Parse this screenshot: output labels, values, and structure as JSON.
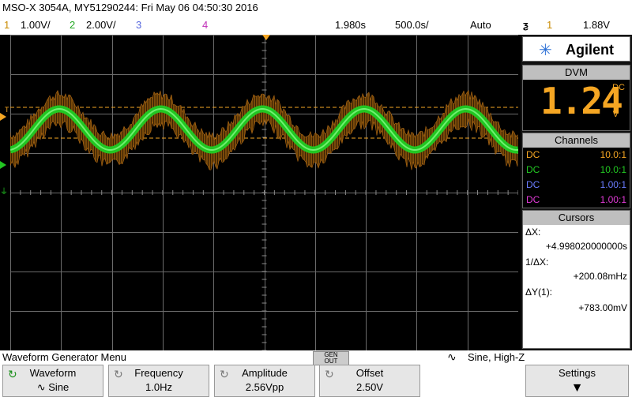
{
  "title": "MSO-X 3054A, MY51290244: Fri May 06 04:50:30 2016",
  "topbar": {
    "ch1_num": "1",
    "ch1_scale": "1.00V/",
    "ch2_num": "2",
    "ch2_scale": "2.00V/",
    "ch3_num": "3",
    "ch4_num": "4",
    "time_ref": "1.980s",
    "time_scale": "500.0s/",
    "trigger_mode": "Auto",
    "trig_icon": "trigger-edge-icon",
    "trig_channel": "1",
    "trig_level": "1.88V"
  },
  "panel": {
    "brand": "Agilent",
    "dvm_header": "DVM",
    "dvm_value": "1.24",
    "dvm_dc": "DC",
    "dvm_unit": "V",
    "channels_header": "Channels",
    "channels": [
      {
        "coupling": "DC",
        "probe": "10.0:1",
        "color": "#f5a623"
      },
      {
        "coupling": "DC",
        "probe": "10.0:1",
        "color": "#22c622"
      },
      {
        "coupling": "DC",
        "probe": "1.00:1",
        "color": "#6a7cff"
      },
      {
        "coupling": "DC",
        "probe": "1.00:1",
        "color": "#e03ad6"
      }
    ],
    "cursors_header": "Cursors",
    "dx_label": "ΔX:",
    "dx_value": "+4.998020000000s",
    "inv_dx_label": "1/ΔX:",
    "inv_dx_value": "+200.08mHz",
    "dy_label": "ΔY(1):",
    "dy_value": "+783.00mV"
  },
  "bottom": {
    "menu_title": "Waveform Generator Menu",
    "gen_label_1": "GEN",
    "gen_label_2": "OUT",
    "status": "Sine, High-Z",
    "softkeys": [
      {
        "title": "Waveform",
        "value": "Sine"
      },
      {
        "title": "Frequency",
        "value": "1.0Hz"
      },
      {
        "title": "Amplitude",
        "value": "2.56Vpp"
      },
      {
        "title": "Offset",
        "value": "2.50V"
      },
      {
        "title": "Settings",
        "value": ""
      }
    ]
  },
  "colors": {
    "ch1": "#f5a623",
    "ch2": "#22c622",
    "ch3": "#6a7cff",
    "ch4": "#e03ad6"
  }
}
